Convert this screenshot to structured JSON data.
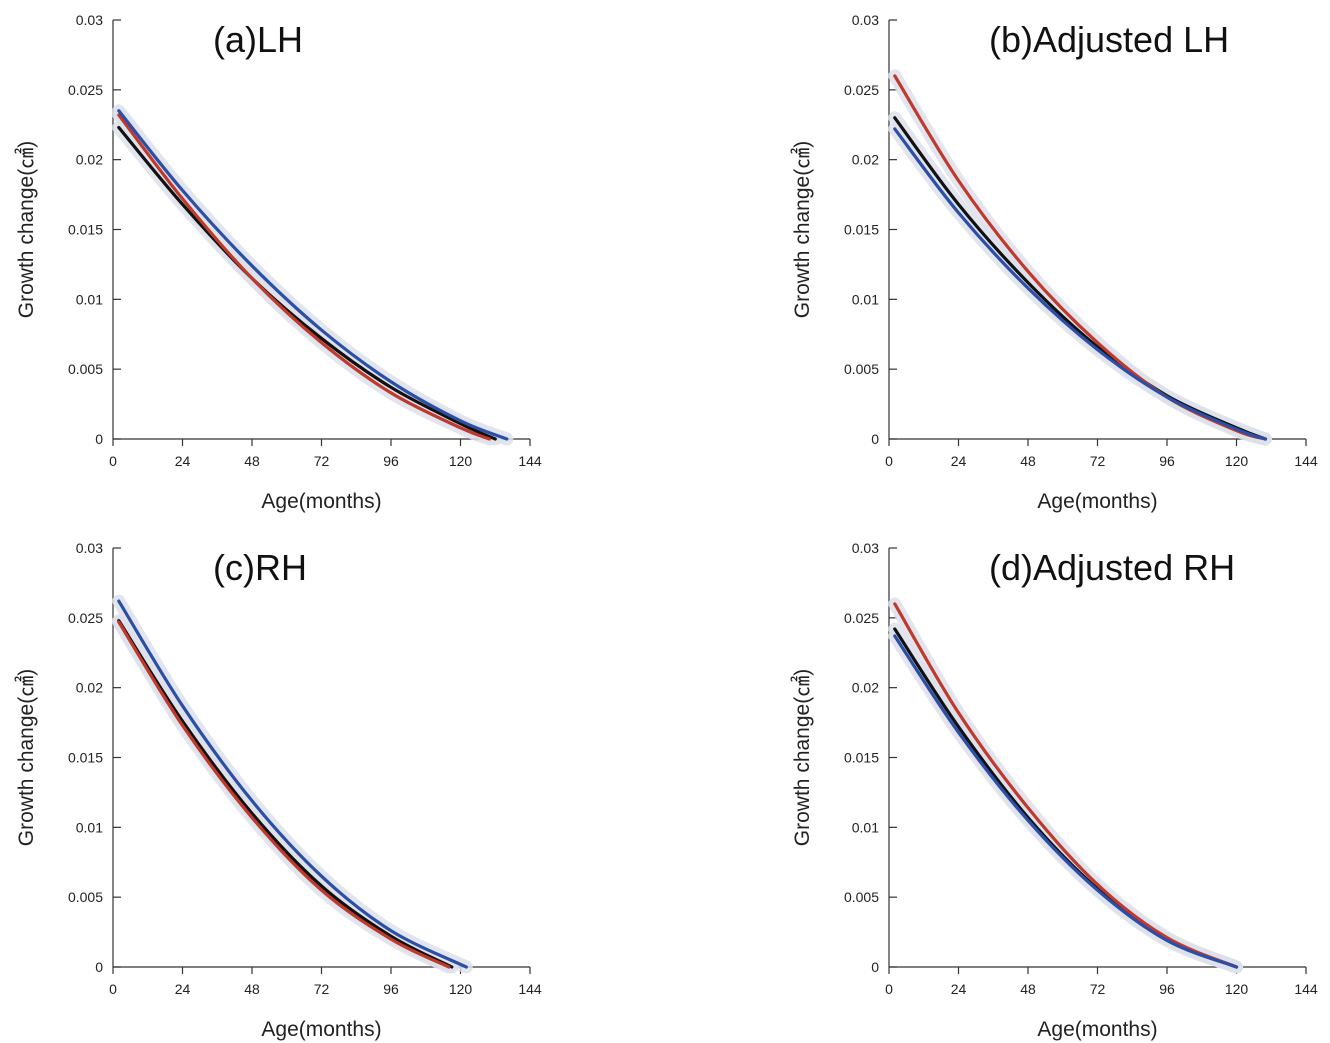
{
  "colors": {
    "black": "#111111",
    "red": "#c0392b",
    "blue": "#2b4fa8",
    "halo": "#dde1ea"
  },
  "chart_data": [
    {
      "type": "line",
      "title": "(a)LH",
      "xlabel": "Age(months)",
      "ylabel": "Growth change(㎠)",
      "xlim": [
        0,
        144
      ],
      "ylim": [
        0,
        0.03
      ],
      "xticks": [
        "0",
        "24",
        "48",
        "72",
        "96",
        "120",
        "144"
      ],
      "yticks": [
        "0",
        "0.005",
        "0.01",
        "0.015",
        "0.02",
        "0.025",
        "0.03"
      ],
      "grid": false,
      "series": [
        {
          "color": "#111111",
          "x": [
            2,
            24,
            48,
            72,
            96,
            120,
            132
          ],
          "y": [
            0.0223,
            0.0168,
            0.0115,
            0.0072,
            0.0037,
            0.0011,
            0.0
          ]
        },
        {
          "color": "#c0392b",
          "x": [
            2,
            24,
            48,
            72,
            96,
            120,
            130
          ],
          "y": [
            0.0232,
            0.0172,
            0.0115,
            0.0069,
            0.0033,
            0.0008,
            0.0
          ]
        },
        {
          "color": "#2b4fa8",
          "x": [
            2,
            24,
            48,
            72,
            96,
            120,
            136
          ],
          "y": [
            0.0235,
            0.0178,
            0.0124,
            0.0078,
            0.0041,
            0.0013,
            0.0
          ]
        }
      ]
    },
    {
      "type": "line",
      "title": "(b)Adjusted LH",
      "xlabel": "Age(months)",
      "ylabel": "Growth change(㎠)",
      "xlim": [
        0,
        144
      ],
      "ylim": [
        0,
        0.03
      ],
      "xticks": [
        "0",
        "24",
        "48",
        "72",
        "96",
        "120",
        "144"
      ],
      "yticks": [
        "0",
        "0.005",
        "0.01",
        "0.015",
        "0.02",
        "0.025",
        "0.03"
      ],
      "grid": false,
      "series": [
        {
          "color": "#111111",
          "x": [
            2,
            24,
            48,
            72,
            96,
            120,
            130
          ],
          "y": [
            0.023,
            0.0168,
            0.0112,
            0.0066,
            0.0031,
            0.0008,
            0.0
          ]
        },
        {
          "color": "#c0392b",
          "x": [
            2,
            24,
            48,
            72,
            96,
            120,
            130
          ],
          "y": [
            0.026,
            0.0185,
            0.012,
            0.0069,
            0.003,
            0.0006,
            0.0
          ]
        },
        {
          "color": "#2b4fa8",
          "x": [
            2,
            24,
            48,
            72,
            96,
            120,
            130
          ],
          "y": [
            0.0222,
            0.0162,
            0.0108,
            0.0064,
            0.003,
            0.0007,
            0.0
          ]
        }
      ]
    },
    {
      "type": "line",
      "title": "(c)RH",
      "xlabel": "Age(months)",
      "ylabel": "Growth change(㎠)",
      "xlim": [
        0,
        144
      ],
      "ylim": [
        0,
        0.03
      ],
      "xticks": [
        "0",
        "24",
        "48",
        "72",
        "96",
        "120",
        "144"
      ],
      "yticks": [
        "0",
        "0.005",
        "0.01",
        "0.015",
        "0.02",
        "0.025",
        "0.03"
      ],
      "grid": false,
      "series": [
        {
          "color": "#111111",
          "x": [
            2,
            24,
            48,
            72,
            96,
            117
          ],
          "y": [
            0.0248,
            0.0176,
            0.011,
            0.0058,
            0.0022,
            0.0
          ]
        },
        {
          "color": "#c0392b",
          "x": [
            2,
            24,
            48,
            72,
            96,
            116
          ],
          "y": [
            0.0247,
            0.0173,
            0.0107,
            0.0055,
            0.002,
            0.0
          ]
        },
        {
          "color": "#2b4fa8",
          "x": [
            2,
            24,
            48,
            72,
            96,
            122
          ],
          "y": [
            0.0262,
            0.0187,
            0.0119,
            0.0065,
            0.0026,
            0.0
          ]
        }
      ]
    },
    {
      "type": "line",
      "title": "(d)Adjusted RH",
      "xlabel": "Age(months)",
      "ylabel": "Growth change(㎠)",
      "xlim": [
        0,
        144
      ],
      "ylim": [
        0,
        0.03
      ],
      "xticks": [
        "0",
        "24",
        "48",
        "72",
        "96",
        "120",
        "144"
      ],
      "yticks": [
        "0",
        "0.005",
        "0.01",
        "0.015",
        "0.02",
        "0.025",
        "0.03"
      ],
      "grid": false,
      "series": [
        {
          "color": "#111111",
          "x": [
            2,
            24,
            48,
            72,
            96,
            120
          ],
          "y": [
            0.0242,
            0.0172,
            0.0107,
            0.0056,
            0.002,
            0.0
          ]
        },
        {
          "color": "#c0392b",
          "x": [
            2,
            24,
            48,
            72,
            96,
            120
          ],
          "y": [
            0.026,
            0.0182,
            0.0114,
            0.0059,
            0.0021,
            0.0
          ]
        },
        {
          "color": "#2b4fa8",
          "x": [
            2,
            24,
            48,
            72,
            96,
            120
          ],
          "y": [
            0.0237,
            0.0168,
            0.0105,
            0.0055,
            0.0019,
            0.0
          ]
        }
      ]
    }
  ]
}
